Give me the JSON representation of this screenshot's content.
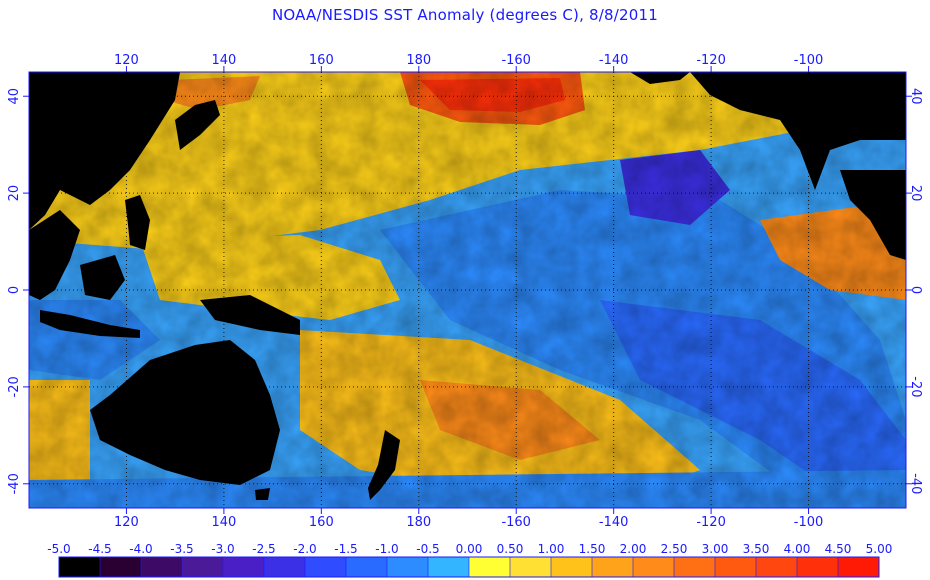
{
  "title": "NOAA/NESDIS SST Anomaly (degrees C), 8/8/2011",
  "map": {
    "lon_labels": [
      "120",
      "140",
      "160",
      "180",
      "-160",
      "-140",
      "-120",
      "-100"
    ],
    "lat_labels_left": [
      "40",
      "20",
      "0",
      "-20",
      "-40"
    ],
    "lat_labels_right": [
      "40",
      "20",
      "0",
      "-20",
      "-40"
    ],
    "lon_values": [
      120,
      140,
      160,
      180,
      200,
      220,
      240,
      260
    ],
    "lat_values": [
      40,
      20,
      0,
      -20,
      -40
    ],
    "lon_range": [
      100,
      280
    ],
    "lat_range": [
      -45,
      45
    ],
    "land_color": "#000000",
    "grid": "dotted"
  },
  "colorbar": {
    "labels": [
      "-5.0",
      "-4.5",
      "-4.0",
      "-3.5",
      "-3.0",
      "-2.5",
      "-2.0",
      "-1.5",
      "-1.0",
      "-0.5",
      "0.00",
      "0.50",
      "1.00",
      "1.50",
      "2.00",
      "2.50",
      "3.00",
      "3.50",
      "4.00",
      "4.50",
      "5.00"
    ],
    "colors": [
      "#000000",
      "#2a0033",
      "#3d0a66",
      "#4a1a99",
      "#4b1fc6",
      "#3c30e6",
      "#2f4cff",
      "#2a6bff",
      "#2d8cff",
      "#33b5ff",
      "#ffff33",
      "#ffe033",
      "#ffc21a",
      "#ffa31a",
      "#ff8c1a",
      "#ff7014",
      "#ff5a0f",
      "#ff470f",
      "#ff300a",
      "#ff1a05"
    ]
  }
}
